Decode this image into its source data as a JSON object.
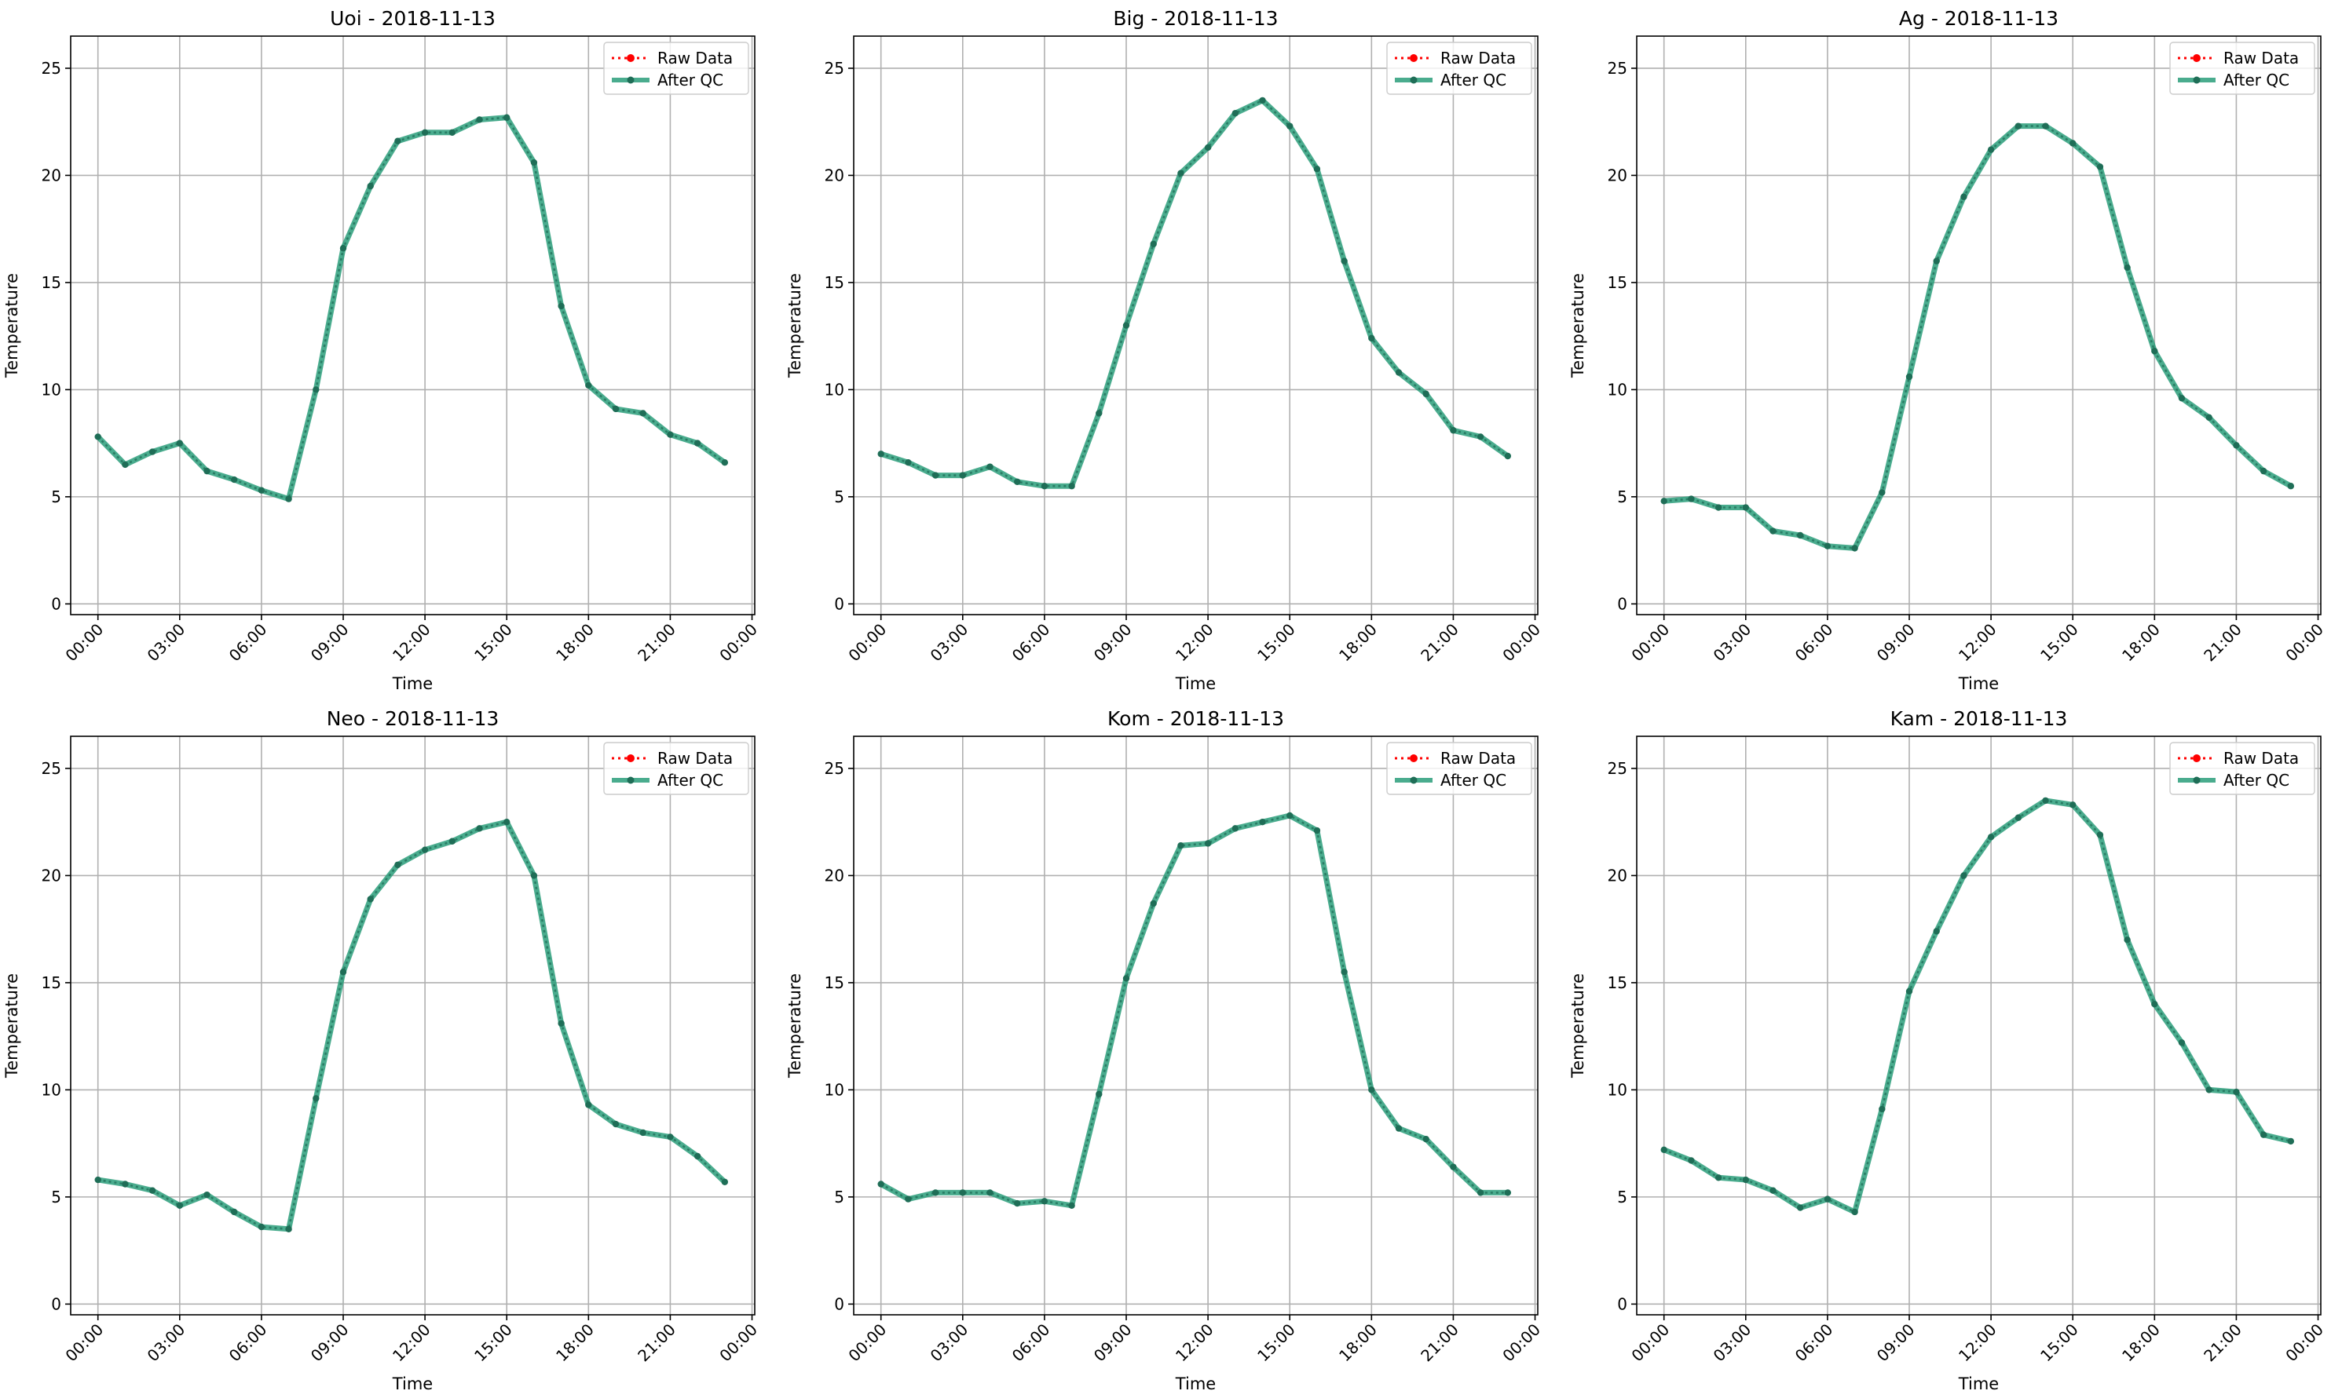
{
  "figure": {
    "series_names": [
      "Raw Data",
      "After QC"
    ],
    "colors": {
      "raw": "#ff0000",
      "qc": "#2a9d7a",
      "qc_marker": "#1f6e57",
      "grid": "#b0b0b0",
      "axis": "#000000"
    }
  },
  "chart_data": [
    {
      "type": "line",
      "title": "Uoi - 2018-11-13",
      "xlabel": "Time",
      "ylabel": "Temperature",
      "ylim": [
        -0.5,
        26.5
      ],
      "xlim_hours": [
        -1,
        24.1
      ],
      "yticks": [
        "0",
        "5",
        "10",
        "15",
        "20",
        "25"
      ],
      "xticks": [
        "00:00",
        "03:00",
        "06:00",
        "09:00",
        "12:00",
        "15:00",
        "18:00",
        "21:00",
        "00:00"
      ],
      "grid": true,
      "legend": "top-right",
      "x": [
        "00:00",
        "01:00",
        "02:00",
        "03:00",
        "04:00",
        "05:00",
        "06:00",
        "07:00",
        "08:00",
        "09:00",
        "10:00",
        "11:00",
        "12:00",
        "13:00",
        "14:00",
        "15:00",
        "16:00",
        "17:00",
        "18:00",
        "19:00",
        "20:00",
        "21:00",
        "22:00",
        "23:00"
      ],
      "series": [
        {
          "name": "Raw Data",
          "values": [
            7.8,
            6.5,
            7.1,
            7.5,
            6.2,
            5.8,
            5.3,
            4.9,
            10.0,
            16.6,
            19.5,
            21.6,
            22.0,
            22.0,
            22.6,
            22.7,
            20.6,
            13.9,
            10.2,
            9.1,
            8.9,
            7.9,
            7.5,
            6.6
          ]
        },
        {
          "name": "After QC",
          "values": [
            7.8,
            6.5,
            7.1,
            7.5,
            6.2,
            5.8,
            5.3,
            4.9,
            10.0,
            16.6,
            19.5,
            21.6,
            22.0,
            22.0,
            22.6,
            22.7,
            20.6,
            13.9,
            10.2,
            9.1,
            8.9,
            7.9,
            7.5,
            6.6
          ]
        }
      ]
    },
    {
      "type": "line",
      "title": "Big - 2018-11-13",
      "xlabel": "Time",
      "ylabel": "Temperature",
      "ylim": [
        -0.5,
        26.5
      ],
      "xlim_hours": [
        -1,
        24.1
      ],
      "yticks": [
        "0",
        "5",
        "10",
        "15",
        "20",
        "25"
      ],
      "xticks": [
        "00:00",
        "03:00",
        "06:00",
        "09:00",
        "12:00",
        "15:00",
        "18:00",
        "21:00",
        "00:00"
      ],
      "grid": true,
      "legend": "top-right",
      "x": [
        "00:00",
        "01:00",
        "02:00",
        "03:00",
        "04:00",
        "05:00",
        "06:00",
        "07:00",
        "08:00",
        "09:00",
        "10:00",
        "11:00",
        "12:00",
        "13:00",
        "14:00",
        "15:00",
        "16:00",
        "17:00",
        "18:00",
        "19:00",
        "20:00",
        "21:00",
        "22:00",
        "23:00"
      ],
      "series": [
        {
          "name": "Raw Data",
          "values": [
            7.0,
            6.6,
            6.0,
            6.0,
            6.4,
            5.7,
            5.5,
            5.5,
            8.9,
            13.0,
            16.8,
            20.1,
            21.3,
            22.9,
            23.5,
            22.3,
            20.3,
            16.0,
            12.4,
            10.8,
            9.8,
            8.1,
            7.8,
            6.9
          ]
        },
        {
          "name": "After QC",
          "values": [
            7.0,
            6.6,
            6.0,
            6.0,
            6.4,
            5.7,
            5.5,
            5.5,
            8.9,
            13.0,
            16.8,
            20.1,
            21.3,
            22.9,
            23.5,
            22.3,
            20.3,
            16.0,
            12.4,
            10.8,
            9.8,
            8.1,
            7.8,
            6.9
          ]
        }
      ]
    },
    {
      "type": "line",
      "title": "Ag - 2018-11-13",
      "xlabel": "Time",
      "ylabel": "Temperature",
      "ylim": [
        -0.5,
        26.5
      ],
      "xlim_hours": [
        -1,
        24.1
      ],
      "yticks": [
        "0",
        "5",
        "10",
        "15",
        "20",
        "25"
      ],
      "xticks": [
        "00:00",
        "03:00",
        "06:00",
        "09:00",
        "12:00",
        "15:00",
        "18:00",
        "21:00",
        "00:00"
      ],
      "grid": true,
      "legend": "top-right",
      "x": [
        "00:00",
        "01:00",
        "02:00",
        "03:00",
        "04:00",
        "05:00",
        "06:00",
        "07:00",
        "08:00",
        "09:00",
        "10:00",
        "11:00",
        "12:00",
        "13:00",
        "14:00",
        "15:00",
        "16:00",
        "17:00",
        "18:00",
        "19:00",
        "20:00",
        "21:00",
        "22:00",
        "23:00"
      ],
      "series": [
        {
          "name": "Raw Data",
          "values": [
            4.8,
            4.9,
            4.5,
            4.5,
            3.4,
            3.2,
            2.7,
            2.6,
            5.2,
            10.6,
            16.0,
            19.0,
            21.2,
            22.3,
            22.3,
            21.5,
            20.4,
            15.7,
            11.8,
            9.6,
            8.7,
            7.4,
            6.2,
            5.5
          ]
        },
        {
          "name": "After QC",
          "values": [
            4.8,
            4.9,
            4.5,
            4.5,
            3.4,
            3.2,
            2.7,
            2.6,
            5.2,
            10.6,
            16.0,
            19.0,
            21.2,
            22.3,
            22.3,
            21.5,
            20.4,
            15.7,
            11.8,
            9.6,
            8.7,
            7.4,
            6.2,
            5.5
          ]
        }
      ]
    },
    {
      "type": "line",
      "title": "Neo - 2018-11-13",
      "xlabel": "Time",
      "ylabel": "Temperature",
      "ylim": [
        -0.5,
        26.5
      ],
      "xlim_hours": [
        -1,
        24.1
      ],
      "yticks": [
        "0",
        "5",
        "10",
        "15",
        "20",
        "25"
      ],
      "xticks": [
        "00:00",
        "03:00",
        "06:00",
        "09:00",
        "12:00",
        "15:00",
        "18:00",
        "21:00",
        "00:00"
      ],
      "grid": true,
      "legend": "top-right",
      "x": [
        "00:00",
        "01:00",
        "02:00",
        "03:00",
        "04:00",
        "05:00",
        "06:00",
        "07:00",
        "08:00",
        "09:00",
        "10:00",
        "11:00",
        "12:00",
        "13:00",
        "14:00",
        "15:00",
        "16:00",
        "17:00",
        "18:00",
        "19:00",
        "20:00",
        "21:00",
        "22:00",
        "23:00"
      ],
      "series": [
        {
          "name": "Raw Data",
          "values": [
            5.8,
            5.6,
            5.3,
            4.6,
            5.1,
            4.3,
            3.6,
            3.5,
            9.6,
            15.5,
            18.9,
            20.5,
            21.2,
            21.6,
            22.2,
            22.5,
            20.0,
            13.1,
            9.3,
            8.4,
            8.0,
            7.8,
            6.9,
            5.7
          ]
        },
        {
          "name": "After QC",
          "values": [
            5.8,
            5.6,
            5.3,
            4.6,
            5.1,
            4.3,
            3.6,
            3.5,
            9.6,
            15.5,
            18.9,
            20.5,
            21.2,
            21.6,
            22.2,
            22.5,
            20.0,
            13.1,
            9.3,
            8.4,
            8.0,
            7.8,
            6.9,
            5.7
          ]
        }
      ]
    },
    {
      "type": "line",
      "title": "Kom - 2018-11-13",
      "xlabel": "Time",
      "ylabel": "Temperature",
      "ylim": [
        -0.5,
        26.5
      ],
      "xlim_hours": [
        -1,
        24.1
      ],
      "yticks": [
        "0",
        "5",
        "10",
        "15",
        "20",
        "25"
      ],
      "xticks": [
        "00:00",
        "03:00",
        "06:00",
        "09:00",
        "12:00",
        "15:00",
        "18:00",
        "21:00",
        "00:00"
      ],
      "grid": true,
      "legend": "top-right",
      "x": [
        "00:00",
        "01:00",
        "02:00",
        "03:00",
        "04:00",
        "05:00",
        "06:00",
        "07:00",
        "08:00",
        "09:00",
        "10:00",
        "11:00",
        "12:00",
        "13:00",
        "14:00",
        "15:00",
        "16:00",
        "17:00",
        "18:00",
        "19:00",
        "20:00",
        "21:00",
        "22:00",
        "23:00"
      ],
      "series": [
        {
          "name": "Raw Data",
          "values": [
            5.6,
            4.9,
            5.2,
            5.2,
            5.2,
            4.7,
            4.8,
            4.6,
            9.8,
            15.2,
            18.7,
            21.4,
            21.5,
            22.2,
            22.5,
            22.8,
            22.1,
            15.5,
            10.0,
            8.2,
            7.7,
            6.4,
            5.2,
            5.2
          ]
        },
        {
          "name": "After QC",
          "values": [
            5.6,
            4.9,
            5.2,
            5.2,
            5.2,
            4.7,
            4.8,
            4.6,
            9.8,
            15.2,
            18.7,
            21.4,
            21.5,
            22.2,
            22.5,
            22.8,
            22.1,
            15.5,
            10.0,
            8.2,
            7.7,
            6.4,
            5.2,
            5.2
          ]
        }
      ]
    },
    {
      "type": "line",
      "title": "Kam - 2018-11-13",
      "xlabel": "Time",
      "ylabel": "Temperature",
      "ylim": [
        -0.5,
        26.5
      ],
      "xlim_hours": [
        -1,
        24.1
      ],
      "yticks": [
        "0",
        "5",
        "10",
        "15",
        "20",
        "25"
      ],
      "xticks": [
        "00:00",
        "03:00",
        "06:00",
        "09:00",
        "12:00",
        "15:00",
        "18:00",
        "21:00",
        "00:00"
      ],
      "grid": true,
      "legend": "top-right",
      "x": [
        "00:00",
        "01:00",
        "02:00",
        "03:00",
        "04:00",
        "05:00",
        "06:00",
        "07:00",
        "08:00",
        "09:00",
        "10:00",
        "11:00",
        "12:00",
        "13:00",
        "14:00",
        "15:00",
        "16:00",
        "17:00",
        "18:00",
        "19:00",
        "20:00",
        "21:00",
        "22:00",
        "23:00"
      ],
      "series": [
        {
          "name": "Raw Data",
          "values": [
            7.2,
            6.7,
            5.9,
            5.8,
            5.3,
            4.5,
            4.9,
            4.3,
            9.1,
            14.6,
            17.4,
            20.0,
            21.8,
            22.7,
            23.5,
            23.3,
            21.9,
            17.0,
            14.0,
            12.2,
            10.0,
            9.9,
            7.9,
            7.6
          ]
        },
        {
          "name": "After QC",
          "values": [
            7.2,
            6.7,
            5.9,
            5.8,
            5.3,
            4.5,
            4.9,
            4.3,
            9.1,
            14.6,
            17.4,
            20.0,
            21.8,
            22.7,
            23.5,
            23.3,
            21.9,
            17.0,
            14.0,
            12.2,
            10.0,
            9.9,
            7.9,
            7.6
          ]
        }
      ]
    }
  ]
}
